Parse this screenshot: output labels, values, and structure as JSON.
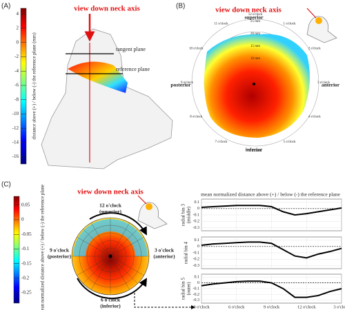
{
  "figure": {
    "panel_a": {
      "label": "(A)",
      "view": "view down neck axis",
      "tangent": "tangent plane",
      "reference": "reference plane",
      "colorbar": {
        "label": "distance above (+) / below (-) the reference plane (mm)",
        "lim": [
          4.8,
          -17
        ],
        "ticks": [
          4,
          2,
          0,
          -2,
          -4,
          -6,
          -8,
          -10,
          -12,
          -14,
          -16
        ]
      }
    },
    "panel_b": {
      "label": "(B)",
      "view": "view down neck axis",
      "superior": "superior",
      "inferior": "inferior",
      "posterior": "posterior",
      "anterior": "anterior",
      "clock_labels": [
        "12 o'clock",
        "1 o'clock",
        "2 o'clock",
        "3 o'clock",
        "4 o'clock",
        "5 o'clock",
        "6 o'clock",
        "7 o'clock",
        "8 o'clock",
        "9 o'clock",
        "10 o'clock",
        "11 o'clock"
      ],
      "radius_labels": [
        "25 mm",
        "20 mm",
        "15 mm",
        "10 mm"
      ]
    },
    "panel_c": {
      "label": "(C)",
      "view": "view down neck axis",
      "top": [
        "12 o'clock",
        "(superior)"
      ],
      "left": [
        "9 o'clock",
        "(posterior)"
      ],
      "right": [
        "3 o'clock",
        "(anterior)"
      ],
      "bottom": [
        "6 o'clock",
        "(inferior)"
      ],
      "plot_title": "mean normalized distance above (+) / below (-) the reference plane",
      "colorbar": {
        "label": "mean normalized distance above (+) / below (-) the reference plane",
        "lim": [
          0.08,
          -0.285
        ],
        "ticks": [
          0.05,
          0,
          -0.05,
          -0.1,
          -0.15,
          -0.2,
          -0.25
        ]
      }
    }
  },
  "chart_data": [
    {
      "type": "line",
      "ylabel": [
        "radial bin 3",
        "(middle)"
      ],
      "color": "#000000",
      "x": [
        0,
        1,
        2,
        3,
        4,
        5,
        6,
        7,
        8,
        9,
        10,
        11,
        12
      ],
      "values": [
        0.02,
        0.03,
        0.04,
        0.05,
        0.05,
        0.05,
        0.03,
        -0.05,
        -0.1,
        -0.08,
        -0.05,
        -0.02,
        0.01
      ],
      "xlim": [
        0,
        12
      ],
      "xticks": [
        0,
        3,
        6,
        9,
        12
      ],
      "ylim": [
        -0.35,
        0.15
      ],
      "yticks": [
        0.1,
        0,
        -0.1,
        -0.2,
        -0.3
      ],
      "grid": true
    },
    {
      "type": "line",
      "ylabel": [
        "radial bin 4"
      ],
      "color": "#000000",
      "x": [
        0,
        1,
        2,
        3,
        4,
        5,
        6,
        7,
        8,
        9,
        10,
        11,
        12
      ],
      "values": [
        0.02,
        0.04,
        0.05,
        0.06,
        0.07,
        0.07,
        0.05,
        -0.05,
        -0.15,
        -0.18,
        -0.12,
        -0.08,
        -0.03
      ],
      "xlim": [
        0,
        12
      ],
      "xticks": [
        0,
        3,
        6,
        9,
        12
      ],
      "ylim": [
        -0.35,
        0.15
      ],
      "yticks": [
        0.1,
        0,
        -0.1,
        -0.2,
        -0.3
      ],
      "grid": true
    },
    {
      "type": "line",
      "ylabel": [
        "radial bin 5",
        "(outer)"
      ],
      "color": "#000000",
      "x": [
        0,
        1,
        2,
        3,
        4,
        5,
        6,
        7,
        8,
        9,
        10,
        11,
        12
      ],
      "values": [
        -0.05,
        -0.02,
        0.0,
        0.02,
        0.03,
        0.03,
        0.0,
        -0.1,
        -0.25,
        -0.25,
        -0.22,
        -0.15,
        -0.1
      ],
      "xlim": [
        0,
        12
      ],
      "xticks": [
        {
          "value": 0,
          "label": "3 o'clock"
        },
        {
          "value": 3,
          "label": "6 o'clock"
        },
        {
          "value": 6,
          "label": "9 o'clock"
        },
        {
          "value": 9,
          "label": "12 o'clock"
        },
        {
          "value": 12,
          "label": "3 o'clock"
        }
      ],
      "ylim": [
        -0.35,
        0.15
      ],
      "yticks": [
        0.1,
        0,
        -0.1,
        -0.2,
        -0.3
      ],
      "grid": true
    }
  ]
}
